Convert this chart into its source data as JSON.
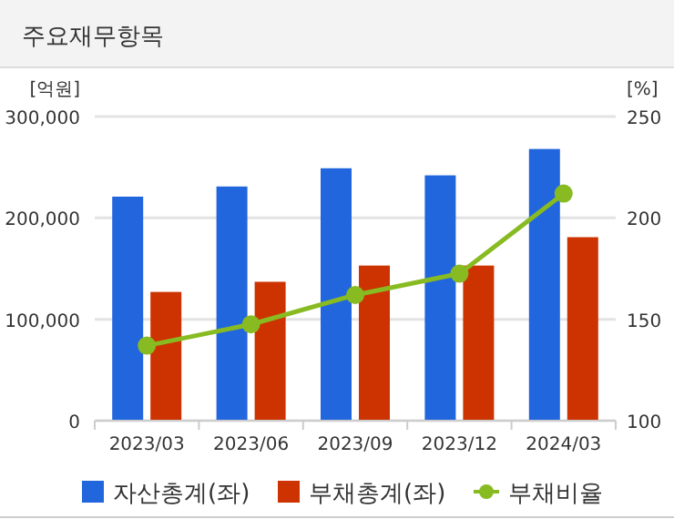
{
  "chart_data": {
    "type": "bar",
    "title": "주요재무항목",
    "ylabel": "[억원]",
    "y2label": "[%]",
    "categories": [
      "2023/03",
      "2023/06",
      "2023/09",
      "2023/12",
      "2024/03"
    ],
    "series": [
      {
        "name": "자산총계(좌)",
        "color": "#2266dd",
        "values": [
          221000,
          231000,
          249000,
          242000,
          268000
        ]
      },
      {
        "name": "부채총계(좌)",
        "color": "#cc3300",
        "values": [
          127000,
          137000,
          153000,
          153000,
          181000
        ]
      },
      {
        "name": "부채비율",
        "type": "line",
        "axis": "y2",
        "color": "#88bb22",
        "values": [
          137,
          147.5,
          162,
          172.5,
          212
        ]
      }
    ],
    "ylim": [
      0,
      300000
    ],
    "yticks": [
      {
        "value": 0,
        "label": "0"
      },
      {
        "value": 100000,
        "label": "100,000"
      },
      {
        "value": 200000,
        "label": "200,000"
      },
      {
        "value": 300000,
        "label": "300,000"
      }
    ],
    "y2lim": [
      100,
      250
    ],
    "y2ticks": [
      100,
      150,
      200,
      250
    ],
    "grid": "y",
    "legend": "bottom",
    "marker": "circle"
  }
}
